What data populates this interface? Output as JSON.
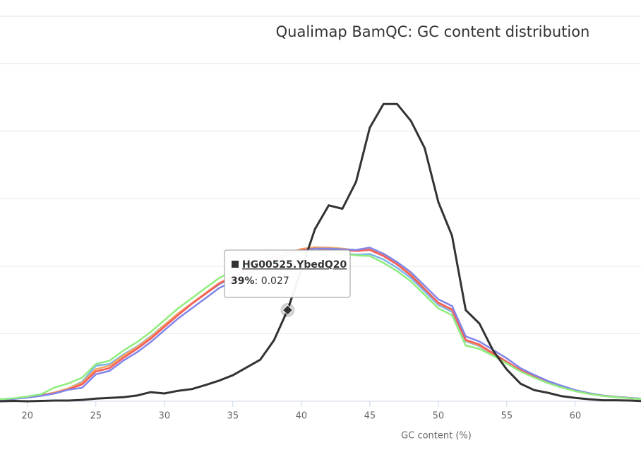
{
  "chart_data": {
    "type": "line",
    "title": "Qualimap BamQC: GC content distribution",
    "x_label": "GC content (%)",
    "x": [
      18,
      19,
      20,
      21,
      22,
      23,
      24,
      25,
      26,
      27,
      28,
      29,
      30,
      31,
      32,
      33,
      34,
      35,
      36,
      37,
      38,
      39,
      40,
      41,
      42,
      43,
      44,
      45,
      46,
      47,
      48,
      49,
      50,
      51,
      52,
      53,
      54,
      55,
      56,
      57,
      58,
      59,
      60,
      61,
      62,
      63,
      64,
      65
    ],
    "xlim": [
      18,
      64.8
    ],
    "xticks": [
      20,
      25,
      30,
      35,
      40,
      45,
      50,
      55,
      60
    ],
    "ylim": [
      0,
      0.114
    ],
    "yticks": [
      0,
      0.02,
      0.04,
      0.06,
      0.08,
      0.1
    ],
    "grid": true,
    "series": [
      {
        "name": "HG00525.YbedQ20",
        "color": "#333333",
        "values": [
          0,
          0.0001,
          0,
          0.0001,
          0.0002,
          0.0002,
          0.0004,
          0.0008,
          0.001,
          0.0012,
          0.0017,
          0.0027,
          0.0023,
          0.0031,
          0.0036,
          0.0048,
          0.0061,
          0.0077,
          0.01,
          0.0123,
          0.018,
          0.027,
          0.039,
          0.051,
          0.058,
          0.057,
          0.065,
          0.081,
          0.088,
          0.088,
          0.083,
          0.075,
          0.059,
          0.049,
          0.027,
          0.023,
          0.015,
          0.0094,
          0.0052,
          0.0033,
          0.0025,
          0.0015,
          0.001,
          0.0006,
          0.0003,
          0.0003,
          0.0002,
          0
        ]
      },
      {
        "color": "#90ed7d",
        "values": [
          0.0006,
          0.0009,
          0.0014,
          0.0021,
          0.0041,
          0.0053,
          0.007,
          0.011,
          0.012,
          0.015,
          0.0175,
          0.0205,
          0.024,
          0.0275,
          0.0305,
          0.0335,
          0.0365,
          0.0385,
          0.0405,
          0.042,
          0.0435,
          0.0435,
          0.044,
          0.0445,
          0.0442,
          0.0438,
          0.0432,
          0.043,
          0.041,
          0.0385,
          0.0355,
          0.0315,
          0.0275,
          0.0255,
          0.0165,
          0.0155,
          0.0135,
          0.0112,
          0.0088,
          0.007,
          0.0054,
          0.0041,
          0.003,
          0.0022,
          0.0016,
          0.0012,
          0.0009,
          0.0006
        ]
      },
      {
        "color": "#8085e9",
        "values": [
          0.0004,
          0.0007,
          0.0011,
          0.0016,
          0.0023,
          0.0034,
          0.004,
          0.008,
          0.009,
          0.012,
          0.0145,
          0.0175,
          0.021,
          0.0245,
          0.0275,
          0.0305,
          0.0335,
          0.0355,
          0.0375,
          0.0395,
          0.0415,
          0.043,
          0.0445,
          0.0452,
          0.0452,
          0.045,
          0.0448,
          0.0455,
          0.0437,
          0.0412,
          0.0382,
          0.0342,
          0.0302,
          0.0282,
          0.0192,
          0.0177,
          0.0152,
          0.0127,
          0.0098,
          0.0078,
          0.006,
          0.0046,
          0.0033,
          0.0024,
          0.0017,
          0.0013,
          0.001,
          0.0007
        ]
      },
      {
        "color": "#f45b5b",
        "values": [
          0.0005,
          0.0008,
          0.0012,
          0.0017,
          0.0024,
          0.0035,
          0.005,
          0.0088,
          0.0098,
          0.0128,
          0.0155,
          0.0185,
          0.022,
          0.0255,
          0.0288,
          0.0318,
          0.0348,
          0.037,
          0.039,
          0.041,
          0.0428,
          0.044,
          0.0448,
          0.0452,
          0.045,
          0.0448,
          0.0445,
          0.0448,
          0.043,
          0.0405,
          0.0372,
          0.0332,
          0.0292,
          0.0272,
          0.0182,
          0.0168,
          0.0142,
          0.0117,
          0.0092,
          0.0073,
          0.0056,
          0.0043,
          0.0031,
          0.0023,
          0.0017,
          0.0013,
          0.001,
          0.0007
        ]
      },
      {
        "color": "#f7a35c",
        "values": [
          0.0005,
          0.0008,
          0.0012,
          0.0018,
          0.0026,
          0.0038,
          0.0055,
          0.0095,
          0.0105,
          0.0135,
          0.016,
          0.019,
          0.0225,
          0.026,
          0.029,
          0.032,
          0.035,
          0.037,
          0.039,
          0.041,
          0.0425,
          0.0437,
          0.0451,
          0.0456,
          0.0455,
          0.0452,
          0.0447,
          0.0449,
          0.0432,
          0.0406,
          0.0376,
          0.0333,
          0.029,
          0.027,
          0.018,
          0.0165,
          0.014,
          0.0115,
          0.009,
          0.0072,
          0.0055,
          0.0042,
          0.003,
          0.0022,
          0.0016,
          0.0012,
          0.0009,
          0.0006
        ]
      },
      {
        "color": "#7cb5ec",
        "values": [
          0.0005,
          0.0008,
          0.0012,
          0.0018,
          0.0026,
          0.0038,
          0.0058,
          0.0105,
          0.011,
          0.0138,
          0.0162,
          0.0192,
          0.0226,
          0.026,
          0.029,
          0.0318,
          0.0346,
          0.0366,
          0.0386,
          0.0406,
          0.0422,
          0.0432,
          0.0442,
          0.0446,
          0.0442,
          0.0438,
          0.0434,
          0.0436,
          0.042,
          0.0395,
          0.0365,
          0.0325,
          0.0285,
          0.0265,
          0.0178,
          0.0163,
          0.0138,
          0.0114,
          0.0089,
          0.0071,
          0.0054,
          0.0041,
          0.003,
          0.0022,
          0.0016,
          0.0012,
          0.0009,
          0.0006
        ]
      }
    ],
    "tooltip": {
      "x": {
        "value": 39,
        "label": "39%"
      },
      "y": 0.027
    }
  }
}
